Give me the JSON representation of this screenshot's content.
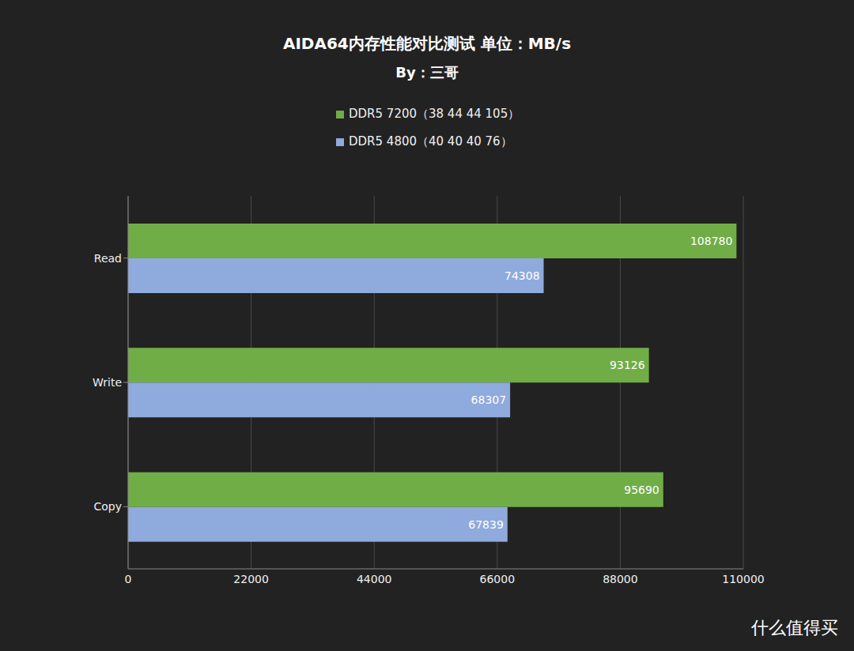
{
  "chart_data": {
    "type": "bar",
    "title": "AIDA64内存性能对比测试 单位：MB/s",
    "subtitle": "By：三哥",
    "orientation": "horizontal",
    "categories": [
      "Read",
      "Write",
      "Copy"
    ],
    "series": [
      {
        "name": "DDR5 7200（38 44 44 105）",
        "color": "#70ad47",
        "values": [
          108780,
          93126,
          95690
        ]
      },
      {
        "name": "DDR5 4800（40 40 40 76）",
        "color": "#8faadc",
        "values": [
          74308,
          68307,
          67839
        ]
      }
    ],
    "xlim": [
      0,
      110000
    ],
    "xticks": [
      0,
      22000,
      44000,
      66000,
      88000,
      110000
    ],
    "grid": true,
    "legend": "top",
    "data_labels": true,
    "annotations": [
      "什么值得买"
    ]
  }
}
